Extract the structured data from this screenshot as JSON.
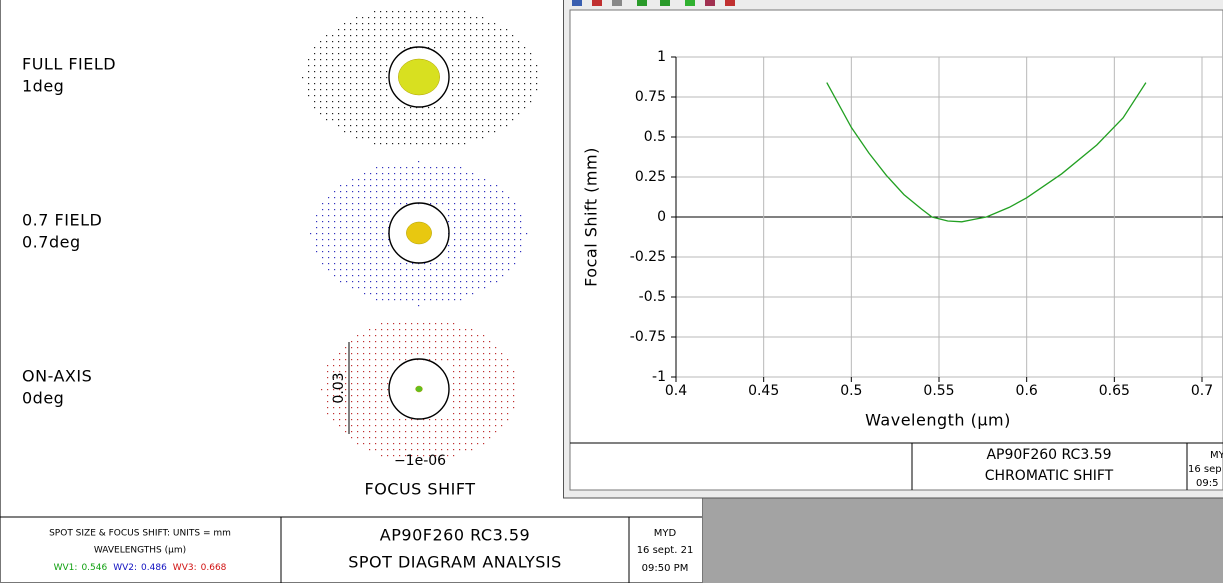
{
  "spot_window": {
    "fields": [
      {
        "name": "FULL FIELD",
        "angle": "1deg"
      },
      {
        "name": "0.7 FIELD",
        "angle": "0.7deg"
      },
      {
        "name": "ON-AXIS",
        "angle": "0deg"
      }
    ],
    "scale_label": "0.03",
    "focus_value": "−1e-06",
    "focus_label": "FOCUS SHIFT",
    "footer": {
      "units": "SPOT SIZE & FOCUS SHIFT: UNITS = mm",
      "wavelengths_title": "WAVELENGTHS (μm)",
      "wavelengths": [
        {
          "label": "WV1:",
          "value": "0.546",
          "color": "#10a010"
        },
        {
          "label": "WV2:",
          "value": "0.486",
          "color": "#1010c0"
        },
        {
          "label": "WV3:",
          "value": "0.668",
          "color": "#d01010"
        }
      ],
      "title": "AP90F260 RC3.59",
      "subtitle": "SPOT DIAGRAM ANALYSIS",
      "author": "MYD",
      "date": "16 sept. 21",
      "time": "09:50 PM"
    }
  },
  "chart_window": {
    "footer": {
      "title": "AP90F260 RC3.59",
      "subtitle": "CHROMATIC SHIFT",
      "author": "MY",
      "date": "16 sep",
      "time": "09:5"
    }
  },
  "chart_data": {
    "type": "line",
    "x_label": "Wavelength (μm)",
    "y_label": "Focal Shift (mm)",
    "xlim": [
      0.4,
      0.7
    ],
    "xticks": [
      0.4,
      0.45,
      0.5,
      0.55,
      0.6,
      0.65,
      0.7
    ],
    "ylim": [
      -1,
      1
    ],
    "yticks": [
      -1,
      -0.75,
      -0.5,
      -0.25,
      0,
      0.25,
      0.5,
      0.75,
      1
    ],
    "grid": true,
    "series": [
      {
        "color": "#22a022",
        "x": [
          0.486,
          0.5,
          0.51,
          0.52,
          0.53,
          0.54,
          0.546,
          0.555,
          0.563,
          0.57,
          0.577,
          0.59,
          0.6,
          0.62,
          0.64,
          0.655,
          0.668
        ],
        "values": [
          0.84,
          0.56,
          0.4,
          0.26,
          0.14,
          0.05,
          0,
          -0.025,
          -0.03,
          -0.015,
          0,
          0.06,
          0.12,
          0.27,
          0.45,
          0.62,
          0.84
        ]
      }
    ]
  }
}
